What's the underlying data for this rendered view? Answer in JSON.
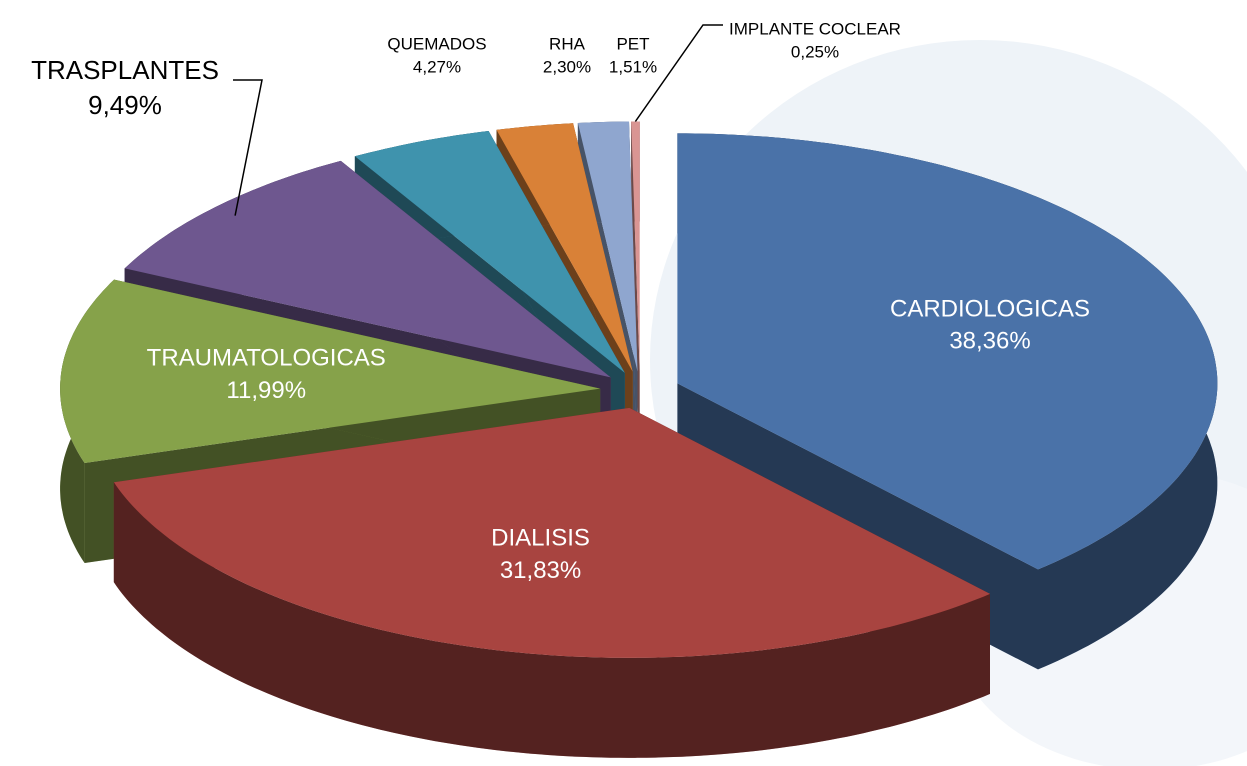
{
  "chart_data": {
    "type": "pie3d",
    "categories": [
      "CARDIOLOGICAS",
      "DIALISIS",
      "TRAUMATOLOGICAS",
      "TRASPLANTES",
      "QUEMADOS",
      "RHA",
      "PET",
      "IMPLANTE COCLEAR"
    ],
    "values": [
      38.36,
      31.83,
      11.99,
      9.49,
      4.27,
      2.3,
      1.51,
      0.25
    ],
    "value_labels": [
      "38,36%",
      "31,83%",
      "11,99%",
      "9,49%",
      "4,27%",
      "2,30%",
      "1,51%",
      "0,25%"
    ],
    "colors": [
      "#4a72a8",
      "#a84440",
      "#86a24a",
      "#6e578f",
      "#3f93ad",
      "#d98137",
      "#8fa6cf",
      "#d99593"
    ]
  }
}
